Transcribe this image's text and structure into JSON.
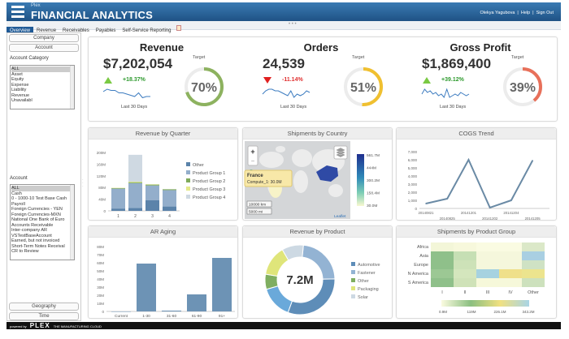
{
  "header": {
    "brand_small": "Plex",
    "title": "FINANCIAL ANALYTICS",
    "user": "Olekya Yagubova",
    "help": "Help",
    "signout": "Sign Out"
  },
  "tabs": [
    {
      "label": "Overview",
      "active": true
    },
    {
      "label": "Revenue"
    },
    {
      "label": "Receivables"
    },
    {
      "label": "Payables"
    },
    {
      "label": "Self-Service Reporting"
    }
  ],
  "sidebar": {
    "sections": [
      "Company",
      "Account",
      "Geography",
      "Time"
    ],
    "account_category_label": "Account Category",
    "account_category_items": [
      "ALL",
      "Asset",
      "Equity",
      "Expense",
      "Liability",
      "Revenue",
      "Unavailabl"
    ],
    "account_label": "Account",
    "account_items": [
      "ALL",
      "Cash",
      "0 - 1000-10 Test Base Cash",
      "Payroll",
      "Foreign Currencies - YEN",
      "Foreign Currencies-MXN",
      "National One Bank of Euro",
      "Accounts Receivable",
      "Inter-company AR",
      "VSTestBaseAccount",
      "Earned, but not invoiced",
      "Short-Term Notes Receival",
      "CR to Review"
    ]
  },
  "kpis": [
    {
      "title": "Revenue",
      "value": "$7,202,054",
      "change": "+18.37%",
      "direction": "up",
      "period": "Last 30 Days",
      "target_label": "Target",
      "target_pct": 70,
      "color": "#8db25f",
      "spark": [
        6,
        8,
        7,
        7,
        5,
        5,
        4,
        3,
        2,
        5,
        1,
        2,
        2
      ]
    },
    {
      "title": "Orders",
      "value": "24,539",
      "change": "-11.14%",
      "direction": "down",
      "period": "Last 30 Days",
      "target_label": "Target",
      "target_pct": 51,
      "color": "#f0c030",
      "spark": [
        3,
        5,
        6,
        6,
        5,
        5,
        4,
        3,
        2,
        5,
        1,
        3,
        2,
        3,
        5,
        4
      ]
    },
    {
      "title": "Gross Profit",
      "value": "$1,869,400",
      "change": "+39.12%",
      "direction": "up",
      "period": "Last 30 Days",
      "target_label": "Target",
      "target_pct": 39,
      "color": "#e8705a",
      "spark": [
        3,
        6,
        4,
        5,
        3,
        4,
        2,
        3,
        1,
        6,
        1,
        2,
        3,
        2,
        4,
        3,
        2,
        3
      ]
    }
  ],
  "colors": {
    "up": "#7ac943",
    "down": "#e02020",
    "up_text": "#2e9a2e",
    "down_text": "#e03030",
    "bar": "#6d93b5",
    "line": "#6a8aa5"
  },
  "map": {
    "title": "Shipments by Country",
    "tooltip_country": "France",
    "tooltip_value": "Compute_1: 30.0M",
    "scale_km": "10000 km",
    "scale_mi": "5000 mi",
    "attribution": "Leaflet",
    "zoom_in": "+",
    "zoom_out": "−",
    "legend": [
      "561.7M",
      "444M",
      "300.2M",
      "158.4M",
      "30.0M"
    ]
  },
  "chart_data": [
    {
      "type": "bar",
      "stacked": true,
      "title": "Revenue by Quarter",
      "categories": [
        "1",
        "2",
        "3",
        "4"
      ],
      "ylim": [
        0,
        200
      ],
      "yticks": [
        "0",
        "40M",
        "80M",
        "120M",
        "160M",
        "200M"
      ],
      "legend": "right",
      "series": [
        {
          "name": "Other",
          "color": "#5b83aa",
          "values": [
            8,
            10,
            37,
            15
          ]
        },
        {
          "name": "Product Group 1",
          "color": "#93aecb",
          "values": [
            68,
            85,
            50,
            56
          ]
        },
        {
          "name": "Product Group 2",
          "color": "#7faa5a",
          "values": [
            2,
            3,
            3,
            3
          ]
        },
        {
          "name": "Product Group 3",
          "color": "#e4e98a",
          "values": [
            1,
            2,
            1,
            0
          ]
        },
        {
          "name": "Product Group 4",
          "color": "#cfd9e2",
          "values": [
            0,
            92,
            0,
            0
          ]
        }
      ]
    },
    {
      "type": "line",
      "title": "COGS Trend",
      "categories": [
        "20140821",
        "20140825",
        "20141201",
        "20141202",
        "20141204",
        "20141205"
      ],
      "values": [
        600,
        1200,
        6000,
        100,
        1000,
        5900
      ],
      "ylim": [
        0,
        7000
      ],
      "yticks": [
        "0",
        "1,000",
        "2,000",
        "3,000",
        "4,000",
        "5,000",
        "6,000",
        "7,000"
      ]
    },
    {
      "type": "bar",
      "title": "AR Aging",
      "categories": [
        "Current",
        "1-30",
        "31-60",
        "61-90",
        "91+"
      ],
      "values": [
        0,
        59,
        1,
        21,
        66
      ],
      "ylim": [
        0,
        80
      ],
      "yticks": [
        "0",
        "10M",
        "20M",
        "30M",
        "40M",
        "50M",
        "60M",
        "70M",
        "80M"
      ]
    },
    {
      "type": "pie",
      "donut": true,
      "title": "Revenue by Product",
      "center_label": "7.2M",
      "legend": "right",
      "slices": [
        {
          "name": "Fastener",
          "value": 23,
          "color": "#93b3d3"
        },
        {
          "name": "Automotive",
          "value": 31,
          "color": "#5e8db8"
        },
        {
          "name": "",
          "value": 15,
          "color": "#6aa9da"
        },
        {
          "name": "Other",
          "value": 7,
          "color": "#7fae60"
        },
        {
          "name": "Packaging",
          "value": 14,
          "color": "#dfe57a"
        },
        {
          "name": "Solar",
          "value": 10,
          "color": "#cdd9e3"
        }
      ],
      "legend_items": [
        "Automotive",
        "Fastener",
        "Other",
        "Packaging",
        "Solar"
      ],
      "legend_colors": [
        "#5e8db8",
        "#93b3d3",
        "#7fae60",
        "#dfe57a",
        "#cdd9e3"
      ]
    },
    {
      "type": "heatmap",
      "title": "Shipments by Product Group",
      "rows": [
        "Africa",
        "Asia",
        "Europe",
        "N America",
        "S America"
      ],
      "columns": [
        "I",
        "II",
        "III",
        "IV",
        "Other"
      ],
      "cells": [
        [
          "#f3f6d8",
          "#f7f8dc",
          "#fafbe2",
          "#fafbe2",
          "#dbe8c8"
        ],
        [
          "#8fc08a",
          "#c6dfb4",
          "#f5f7dc",
          "#f5f7dc",
          "#a9cfe2"
        ],
        [
          "#8fc08a",
          "#cde2b8",
          "#f5f7dc",
          "#f5f7dc",
          "#cfe2c4"
        ],
        [
          "#9cc894",
          "#d4e6bd",
          "#a6d2e0",
          "#efe08a",
          "#ece48e"
        ],
        [
          "#8fc08a",
          "#cfe2b8",
          "#f6f8da",
          "#f6f8da",
          "#cde1bd"
        ]
      ],
      "scale_ticks": [
        "0.9M",
        "119M",
        "226.1M",
        "343.2M"
      ],
      "scale_colors": [
        "#fbfbe0",
        "#8bbf80",
        "#f0e080",
        "#a8d4e6"
      ]
    }
  ]
}
